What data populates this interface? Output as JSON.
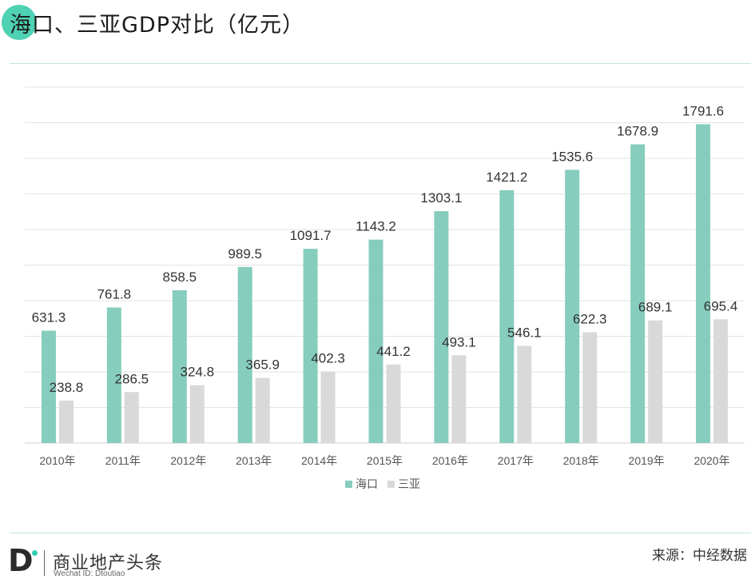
{
  "header": {
    "title": "海口、三亚GDP对比（亿元）"
  },
  "chart_data": {
    "type": "bar",
    "categories": [
      "2010年",
      "2011年",
      "2012年",
      "2013年",
      "2014年",
      "2015年",
      "2016年",
      "2017年",
      "2018年",
      "2019年",
      "2020年"
    ],
    "series": [
      {
        "name": "海口",
        "color": "#86cdbd",
        "values": [
          631.3,
          761.8,
          858.5,
          989.5,
          1091.7,
          1143.2,
          1303.1,
          1421.2,
          1535.6,
          1678.9,
          1791.6
        ]
      },
      {
        "name": "三亚",
        "color": "#d9d9d9",
        "values": [
          238.8,
          286.5,
          324.8,
          365.9,
          402.3,
          441.2,
          493.1,
          546.1,
          622.3,
          689.1,
          695.4
        ]
      }
    ],
    "ylim": [
      0,
      2000
    ],
    "grid": true,
    "legend": "bottom",
    "data_labels": true
  },
  "footer": {
    "logo_letter": "D",
    "brand": "商业地产头条",
    "brand_sub": "Wechat ID: Dtoutiao",
    "source": "来源：中经数据"
  }
}
